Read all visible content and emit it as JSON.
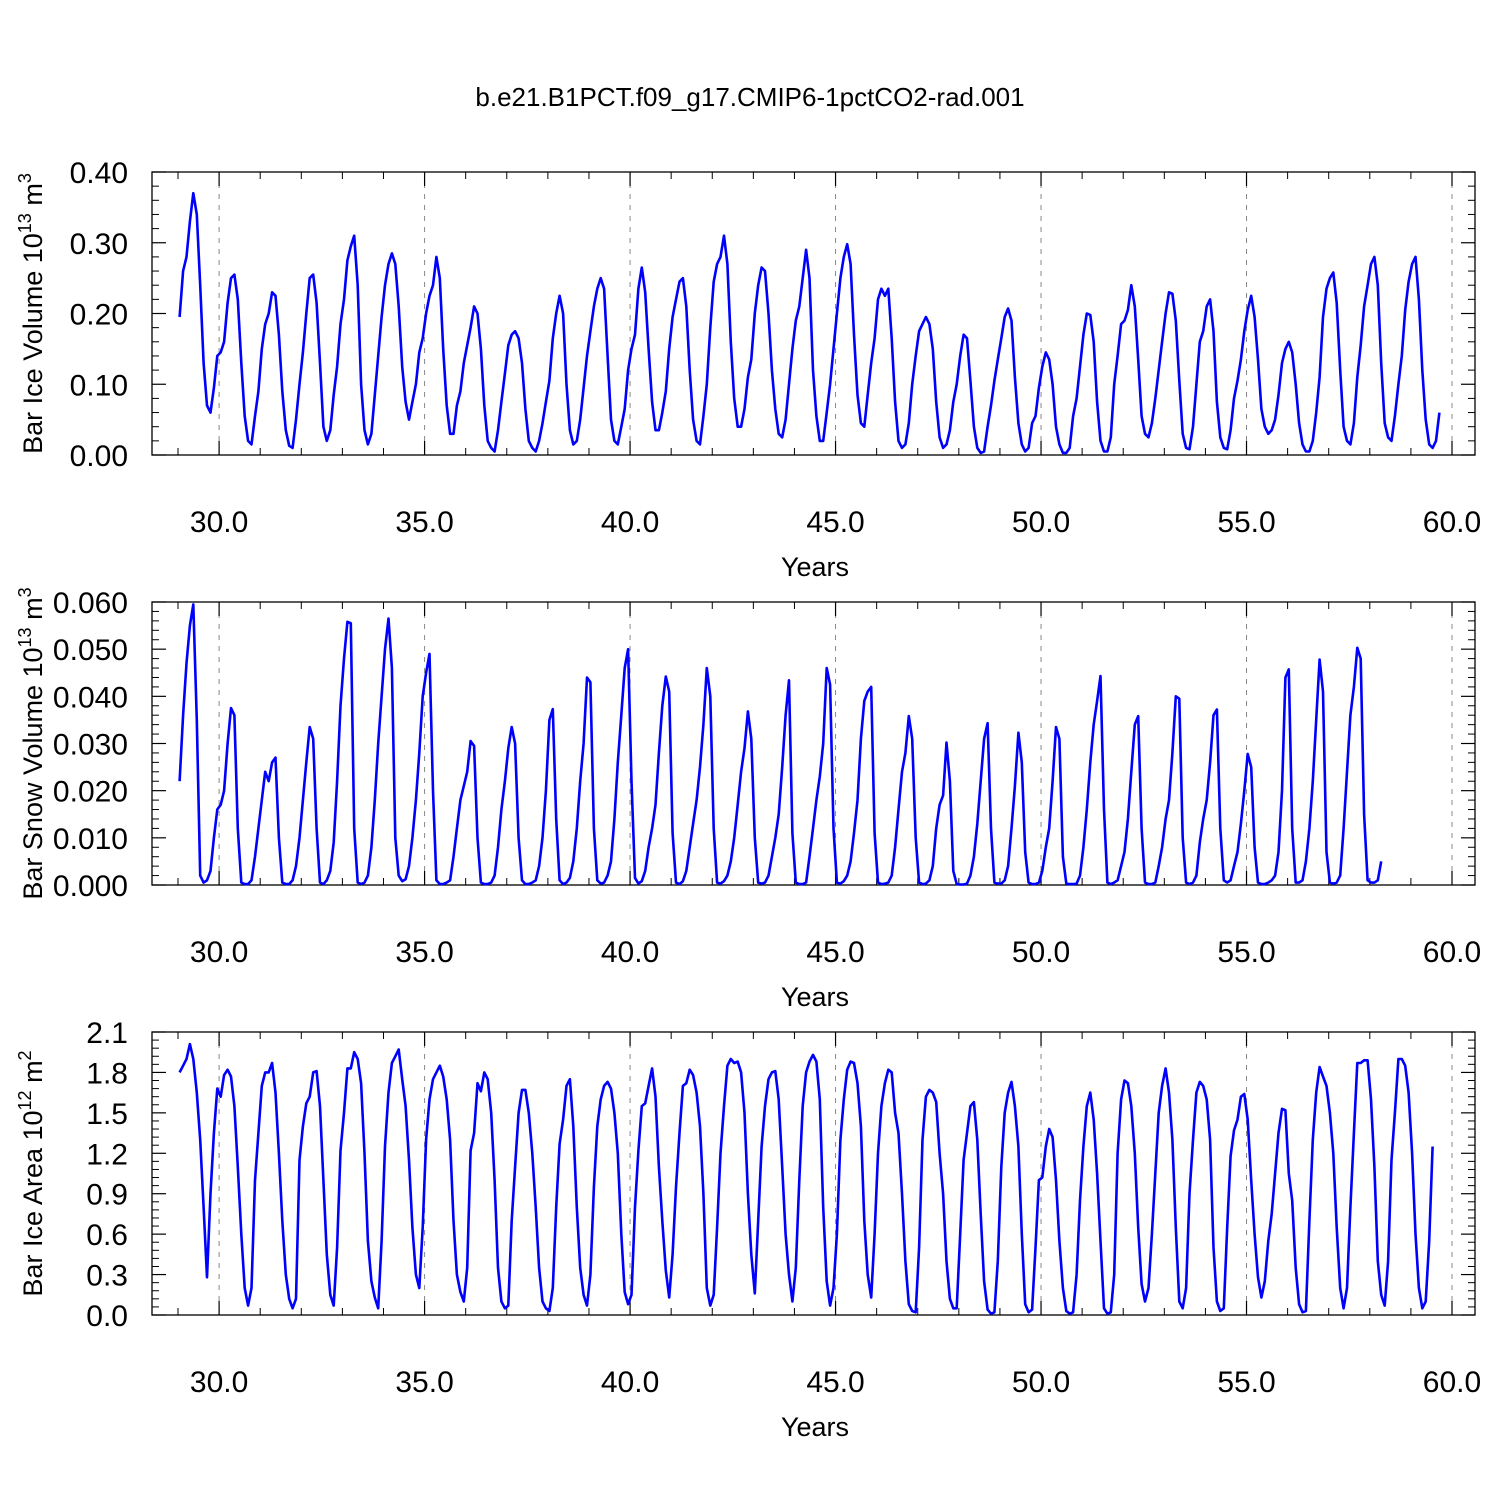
{
  "title": "b.e21.B1PCT.f09_g17.CMIP6-1pctCO2-rad.001",
  "colors": {
    "series": "#0000ff",
    "axes": "#000000",
    "gridline": "#888888"
  },
  "chart_data": [
    {
      "type": "line",
      "ylabel_main": "Bar Ice Volume 10",
      "ylabel_exp": "13",
      "ylabel_unit": " m",
      "ylabel_unit_exp": "3",
      "xlabel": "Years",
      "xlim": [
        29,
        60
      ],
      "ylim": [
        0,
        0.4
      ],
      "x_ticks": [
        "30.0",
        "35.0",
        "40.0",
        "45.0",
        "50.0",
        "55.0",
        "60.0"
      ],
      "y_ticks": [
        "0.00",
        "0.10",
        "0.20",
        "0.30",
        "0.40"
      ],
      "start_year": 29.04,
      "step": 0.0833,
      "values": [
        0.195,
        0.26,
        0.28,
        0.33,
        0.37,
        0.34,
        0.24,
        0.13,
        0.07,
        0.06,
        0.095,
        0.14,
        0.145,
        0.16,
        0.215,
        0.25,
        0.255,
        0.22,
        0.13,
        0.055,
        0.02,
        0.015,
        0.055,
        0.09,
        0.15,
        0.185,
        0.2,
        0.23,
        0.225,
        0.17,
        0.09,
        0.035,
        0.013,
        0.01,
        0.05,
        0.1,
        0.145,
        0.2,
        0.25,
        0.255,
        0.215,
        0.13,
        0.04,
        0.02,
        0.035,
        0.085,
        0.125,
        0.185,
        0.22,
        0.275,
        0.295,
        0.31,
        0.24,
        0.1,
        0.035,
        0.015,
        0.03,
        0.085,
        0.14,
        0.195,
        0.24,
        0.27,
        0.285,
        0.27,
        0.21,
        0.125,
        0.075,
        0.05,
        0.075,
        0.1,
        0.145,
        0.165,
        0.2,
        0.225,
        0.24,
        0.28,
        0.25,
        0.15,
        0.07,
        0.03,
        0.03,
        0.07,
        0.09,
        0.13,
        0.155,
        0.18,
        0.21,
        0.2,
        0.15,
        0.07,
        0.02,
        0.01,
        0.005,
        0.035,
        0.075,
        0.115,
        0.155,
        0.17,
        0.175,
        0.165,
        0.13,
        0.065,
        0.02,
        0.01,
        0.005,
        0.02,
        0.045,
        0.075,
        0.105,
        0.165,
        0.2,
        0.225,
        0.2,
        0.1,
        0.035,
        0.015,
        0.02,
        0.05,
        0.095,
        0.14,
        0.175,
        0.21,
        0.235,
        0.25,
        0.235,
        0.14,
        0.05,
        0.02,
        0.015,
        0.04,
        0.065,
        0.12,
        0.15,
        0.17,
        0.235,
        0.265,
        0.23,
        0.15,
        0.075,
        0.035,
        0.035,
        0.06,
        0.09,
        0.15,
        0.195,
        0.22,
        0.245,
        0.25,
        0.21,
        0.12,
        0.05,
        0.02,
        0.015,
        0.055,
        0.1,
        0.18,
        0.245,
        0.27,
        0.28,
        0.31,
        0.27,
        0.16,
        0.08,
        0.04,
        0.04,
        0.065,
        0.11,
        0.135,
        0.2,
        0.24,
        0.265,
        0.26,
        0.2,
        0.12,
        0.065,
        0.03,
        0.025,
        0.05,
        0.1,
        0.15,
        0.19,
        0.21,
        0.25,
        0.29,
        0.25,
        0.12,
        0.055,
        0.02,
        0.02,
        0.06,
        0.1,
        0.15,
        0.2,
        0.25,
        0.28,
        0.298,
        0.27,
        0.17,
        0.085,
        0.045,
        0.04,
        0.085,
        0.13,
        0.165,
        0.22,
        0.235,
        0.225,
        0.235,
        0.165,
        0.075,
        0.02,
        0.01,
        0.015,
        0.045,
        0.1,
        0.14,
        0.175,
        0.185,
        0.195,
        0.185,
        0.15,
        0.075,
        0.025,
        0.01,
        0.015,
        0.035,
        0.075,
        0.1,
        0.14,
        0.17,
        0.165,
        0.105,
        0.04,
        0.01,
        0.003,
        0.005,
        0.04,
        0.07,
        0.105,
        0.135,
        0.165,
        0.195,
        0.207,
        0.19,
        0.11,
        0.045,
        0.015,
        0.005,
        0.01,
        0.045,
        0.055,
        0.095,
        0.125,
        0.145,
        0.135,
        0.1,
        0.04,
        0.015,
        0.003,
        0.003,
        0.01,
        0.055,
        0.08,
        0.125,
        0.17,
        0.2,
        0.198,
        0.16,
        0.075,
        0.02,
        0.005,
        0.005,
        0.025,
        0.1,
        0.14,
        0.185,
        0.19,
        0.205,
        0.24,
        0.21,
        0.135,
        0.055,
        0.03,
        0.025,
        0.045,
        0.08,
        0.12,
        0.16,
        0.2,
        0.23,
        0.228,
        0.19,
        0.105,
        0.03,
        0.01,
        0.008,
        0.04,
        0.1,
        0.16,
        0.175,
        0.21,
        0.22,
        0.175,
        0.075,
        0.025,
        0.01,
        0.008,
        0.035,
        0.08,
        0.105,
        0.135,
        0.175,
        0.205,
        0.225,
        0.195,
        0.135,
        0.065,
        0.04,
        0.03,
        0.035,
        0.05,
        0.085,
        0.13,
        0.15,
        0.16,
        0.145,
        0.1,
        0.045,
        0.015,
        0.005,
        0.005,
        0.02,
        0.06,
        0.11,
        0.195,
        0.235,
        0.25,
        0.258,
        0.215,
        0.12,
        0.04,
        0.02,
        0.015,
        0.045,
        0.11,
        0.155,
        0.21,
        0.24,
        0.27,
        0.28,
        0.24,
        0.13,
        0.045,
        0.025,
        0.02,
        0.055,
        0.1,
        0.14,
        0.205,
        0.245,
        0.27,
        0.28,
        0.22,
        0.12,
        0.05,
        0.015,
        0.01,
        0.02,
        0.06
      ]
    },
    {
      "type": "line",
      "ylabel_main": "Bar Snow Volume 10",
      "ylabel_exp": "13",
      "ylabel_unit": " m",
      "ylabel_unit_exp": "3",
      "xlabel": "Years",
      "xlim": [
        29,
        60
      ],
      "ylim": [
        0,
        0.06
      ],
      "x_ticks": [
        "30.0",
        "35.0",
        "40.0",
        "45.0",
        "50.0",
        "55.0",
        "60.0"
      ],
      "y_ticks": [
        "0.000",
        "0.010",
        "0.020",
        "0.030",
        "0.040",
        "0.050",
        "0.060"
      ],
      "start_year": 29.04,
      "step": 0.0833,
      "values": [
        0.022,
        0.036,
        0.047,
        0.055,
        0.0595,
        0.035,
        0.002,
        0.0005,
        0.001,
        0.003,
        0.01,
        0.016,
        0.017,
        0.02,
        0.03,
        0.0375,
        0.036,
        0.012,
        0.0005,
        0.0002,
        0.0002,
        0.001,
        0.006,
        0.012,
        0.018,
        0.024,
        0.022,
        0.026,
        0.027,
        0.01,
        0.0005,
        0.0002,
        0.0002,
        0.001,
        0.004,
        0.01,
        0.018,
        0.026,
        0.0335,
        0.031,
        0.012,
        0.0005,
        0.0002,
        0.001,
        0.003,
        0.009,
        0.022,
        0.038,
        0.048,
        0.0558,
        0.0555,
        0.012,
        0.0005,
        0.0002,
        0.0005,
        0.002,
        0.008,
        0.018,
        0.03,
        0.04,
        0.05,
        0.0565,
        0.046,
        0.01,
        0.002,
        0.0008,
        0.0012,
        0.004,
        0.01,
        0.018,
        0.028,
        0.04,
        0.045,
        0.049,
        0.02,
        0.001,
        0.0002,
        0.0002,
        0.0005,
        0.001,
        0.006,
        0.012,
        0.018,
        0.021,
        0.024,
        0.0305,
        0.0295,
        0.01,
        0.0005,
        0.0002,
        0.0002,
        0.0005,
        0.002,
        0.008,
        0.016,
        0.022,
        0.029,
        0.0335,
        0.03,
        0.01,
        0.001,
        0.0002,
        0.0002,
        0.0005,
        0.001,
        0.004,
        0.01,
        0.02,
        0.035,
        0.0373,
        0.014,
        0.001,
        0.0002,
        0.0005,
        0.0015,
        0.005,
        0.012,
        0.022,
        0.03,
        0.044,
        0.043,
        0.012,
        0.001,
        0.0003,
        0.0005,
        0.002,
        0.005,
        0.014,
        0.026,
        0.036,
        0.046,
        0.05,
        0.022,
        0.0015,
        0.0003,
        0.0008,
        0.003,
        0.008,
        0.012,
        0.017,
        0.028,
        0.038,
        0.0442,
        0.041,
        0.011,
        0.0005,
        0.0002,
        0.0008,
        0.003,
        0.008,
        0.013,
        0.018,
        0.025,
        0.034,
        0.046,
        0.04,
        0.012,
        0.0005,
        0.0003,
        0.0008,
        0.002,
        0.005,
        0.01,
        0.017,
        0.024,
        0.029,
        0.0368,
        0.031,
        0.01,
        0.0005,
        0.0003,
        0.0005,
        0.002,
        0.006,
        0.01,
        0.015,
        0.025,
        0.036,
        0.0434,
        0.011,
        0.0005,
        0.0002,
        0.0002,
        0.0005,
        0.006,
        0.012,
        0.018,
        0.023,
        0.03,
        0.046,
        0.0425,
        0.012,
        0.0005,
        0.0003,
        0.0008,
        0.002,
        0.005,
        0.011,
        0.018,
        0.031,
        0.039,
        0.041,
        0.042,
        0.011,
        0.0005,
        0.0002,
        0.0003,
        0.0005,
        0.002,
        0.008,
        0.016,
        0.024,
        0.028,
        0.0358,
        0.031,
        0.01,
        0.0005,
        0.0002,
        0.0003,
        0.001,
        0.004,
        0.012,
        0.017,
        0.019,
        0.0302,
        0.022,
        0.003,
        0.0002,
        0.0001,
        0.0001,
        0.0003,
        0.002,
        0.006,
        0.013,
        0.022,
        0.031,
        0.0343,
        0.012,
        0.0005,
        0.0003,
        0.0003,
        0.001,
        0.004,
        0.012,
        0.021,
        0.0323,
        0.026,
        0.007,
        0.0005,
        0.0002,
        0.0002,
        0.0005,
        0.003,
        0.008,
        0.012,
        0.022,
        0.0335,
        0.031,
        0.006,
        0.0003,
        0.0002,
        0.0002,
        0.0003,
        0.002,
        0.008,
        0.016,
        0.026,
        0.034,
        0.039,
        0.0443,
        0.016,
        0.0005,
        0.0002,
        0.0005,
        0.001,
        0.004,
        0.007,
        0.014,
        0.024,
        0.034,
        0.0358,
        0.012,
        0.0005,
        0.0002,
        0.0002,
        0.0005,
        0.004,
        0.008,
        0.014,
        0.018,
        0.028,
        0.04,
        0.0395,
        0.01,
        0.0005,
        0.0002,
        0.0005,
        0.002,
        0.009,
        0.014,
        0.018,
        0.026,
        0.036,
        0.0372,
        0.012,
        0.001,
        0.0005,
        0.001,
        0.004,
        0.007,
        0.013,
        0.02,
        0.0278,
        0.025,
        0.008,
        0.0005,
        0.0002,
        0.0002,
        0.0005,
        0.001,
        0.002,
        0.007,
        0.02,
        0.044,
        0.0457,
        0.012,
        0.0005,
        0.0005,
        0.001,
        0.005,
        0.012,
        0.022,
        0.035,
        0.0478,
        0.041,
        0.007,
        0.0005,
        0.0003,
        0.0005,
        0.002,
        0.012,
        0.024,
        0.036,
        0.042,
        0.0503,
        0.048,
        0.015,
        0.001,
        0.0005,
        0.0005,
        0.001,
        0.005
      ]
    },
    {
      "type": "line",
      "ylabel_main": "Bar Ice Area 10",
      "ylabel_exp": "12",
      "ylabel_unit": " m",
      "ylabel_unit_exp": "2",
      "xlabel": "Years",
      "xlim": [
        29,
        60
      ],
      "ylim": [
        0,
        2.1
      ],
      "x_ticks": [
        "30.0",
        "35.0",
        "40.0",
        "45.0",
        "50.0",
        "55.0",
        "60.0"
      ],
      "y_ticks": [
        "0.0",
        "0.3",
        "0.6",
        "0.9",
        "1.2",
        "1.5",
        "1.8",
        "2.1"
      ],
      "start_year": 29.04,
      "step": 0.0833,
      "values": [
        1.8,
        1.85,
        1.9,
        2.01,
        1.9,
        1.65,
        1.3,
        0.8,
        0.28,
        0.9,
        1.35,
        1.68,
        1.62,
        1.78,
        1.82,
        1.77,
        1.55,
        1.1,
        0.6,
        0.2,
        0.07,
        0.2,
        1.0,
        1.35,
        1.7,
        1.8,
        1.8,
        1.87,
        1.65,
        1.2,
        0.7,
        0.3,
        0.12,
        0.05,
        0.12,
        1.15,
        1.4,
        1.57,
        1.62,
        1.8,
        1.81,
        1.55,
        1.0,
        0.45,
        0.15,
        0.07,
        0.5,
        1.22,
        1.5,
        1.83,
        1.83,
        1.95,
        1.9,
        1.72,
        1.2,
        0.55,
        0.25,
        0.13,
        0.05,
        0.55,
        1.25,
        1.65,
        1.87,
        1.92,
        1.97,
        1.75,
        1.55,
        1.15,
        0.65,
        0.3,
        0.2,
        0.65,
        1.3,
        1.6,
        1.75,
        1.8,
        1.85,
        1.77,
        1.6,
        1.3,
        0.7,
        0.3,
        0.17,
        0.1,
        0.35,
        1.22,
        1.35,
        1.72,
        1.66,
        1.8,
        1.75,
        1.5,
        1.0,
        0.35,
        0.1,
        0.05,
        0.07,
        0.7,
        1.1,
        1.5,
        1.67,
        1.67,
        1.5,
        1.2,
        0.8,
        0.35,
        0.1,
        0.05,
        0.03,
        0.2,
        0.8,
        1.27,
        1.45,
        1.7,
        1.75,
        1.4,
        0.8,
        0.35,
        0.15,
        0.07,
        0.3,
        0.95,
        1.4,
        1.6,
        1.7,
        1.73,
        1.68,
        1.5,
        1.2,
        0.6,
        0.17,
        0.08,
        0.15,
        0.8,
        1.22,
        1.55,
        1.57,
        1.7,
        1.83,
        1.62,
        1.1,
        0.7,
        0.33,
        0.13,
        0.45,
        0.95,
        1.35,
        1.7,
        1.72,
        1.82,
        1.78,
        1.65,
        1.4,
        0.9,
        0.2,
        0.07,
        0.15,
        0.65,
        1.2,
        1.55,
        1.85,
        1.9,
        1.87,
        1.88,
        1.8,
        1.5,
        0.9,
        0.45,
        0.16,
        0.7,
        1.25,
        1.55,
        1.75,
        1.8,
        1.81,
        1.6,
        1.1,
        0.6,
        0.3,
        0.1,
        0.35,
        1.0,
        1.55,
        1.8,
        1.88,
        1.93,
        1.88,
        1.6,
        0.8,
        0.25,
        0.07,
        0.2,
        0.6,
        1.3,
        1.6,
        1.82,
        1.88,
        1.87,
        1.72,
        1.4,
        0.7,
        0.3,
        0.13,
        0.6,
        1.2,
        1.55,
        1.72,
        1.82,
        1.8,
        1.5,
        1.35,
        0.9,
        0.4,
        0.08,
        0.03,
        0.02,
        0.5,
        1.3,
        1.62,
        1.67,
        1.65,
        1.58,
        1.2,
        0.9,
        0.4,
        0.12,
        0.05,
        0.05,
        0.6,
        1.15,
        1.35,
        1.55,
        1.58,
        1.3,
        0.75,
        0.25,
        0.04,
        0.01,
        0.02,
        0.4,
        1.1,
        1.5,
        1.65,
        1.73,
        1.55,
        1.25,
        0.6,
        0.08,
        0.02,
        0.04,
        0.5,
        1.0,
        1.02,
        1.25,
        1.38,
        1.32,
        1.0,
        0.55,
        0.2,
        0.03,
        0.01,
        0.02,
        0.3,
        0.85,
        1.25,
        1.55,
        1.65,
        1.45,
        1.05,
        0.55,
        0.05,
        0.01,
        0.02,
        0.3,
        1.2,
        1.6,
        1.74,
        1.72,
        1.55,
        1.2,
        0.65,
        0.23,
        0.1,
        0.2,
        0.6,
        1.05,
        1.5,
        1.7,
        1.83,
        1.65,
        1.3,
        0.65,
        0.1,
        0.05,
        0.2,
        0.9,
        1.3,
        1.65,
        1.73,
        1.7,
        1.6,
        1.3,
        0.5,
        0.1,
        0.03,
        0.05,
        0.65,
        1.18,
        1.37,
        1.45,
        1.62,
        1.64,
        1.45,
        1.0,
        0.6,
        0.28,
        0.13,
        0.25,
        0.55,
        0.75,
        1.05,
        1.35,
        1.53,
        1.52,
        1.05,
        0.85,
        0.35,
        0.08,
        0.02,
        0.03,
        0.7,
        1.3,
        1.65,
        1.84,
        1.77,
        1.7,
        1.5,
        1.2,
        0.65,
        0.2,
        0.05,
        0.2,
        0.8,
        1.35,
        1.87,
        1.87,
        1.89,
        1.89,
        1.6,
        1.1,
        0.4,
        0.15,
        0.07,
        0.4,
        1.15,
        1.5,
        1.9,
        1.9,
        1.85,
        1.65,
        1.2,
        0.6,
        0.2,
        0.05,
        0.1,
        0.55,
        1.25
      ]
    }
  ]
}
